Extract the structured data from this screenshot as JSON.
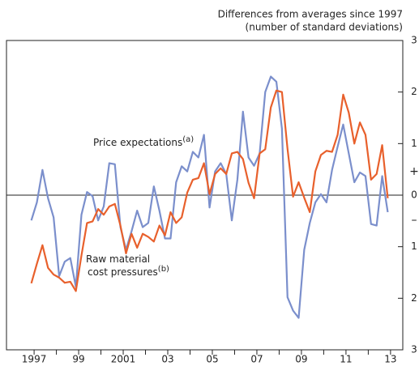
{
  "chart_data": {
    "type": "line",
    "subtitle_lines": [
      "Differences from averages since 1997",
      "(number of standard deviations)"
    ],
    "sign_labels": [
      "+",
      "–"
    ],
    "annotations": [
      {
        "lines": [
          "Price expectations"
        ],
        "note": "(a)"
      },
      {
        "lines": [
          "Raw material",
          "cost pressures"
        ],
        "note": "(b)"
      }
    ],
    "x": [
      1996.875,
      1997.125,
      1997.375,
      1997.625,
      1997.875,
      1998.125,
      1998.375,
      1998.625,
      1998.875,
      1999.125,
      1999.375,
      1999.625,
      1999.875,
      2000.125,
      2000.375,
      2000.625,
      2000.875,
      2001.125,
      2001.375,
      2001.625,
      2001.875,
      2002.125,
      2002.375,
      2002.625,
      2002.875,
      2003.125,
      2003.375,
      2003.625,
      2003.875,
      2004.125,
      2004.375,
      2004.625,
      2004.875,
      2005.125,
      2005.375,
      2005.625,
      2005.875,
      2006.125,
      2006.375,
      2006.625,
      2006.875,
      2007.125,
      2007.375,
      2007.625,
      2007.875,
      2008.125,
      2008.375,
      2008.625,
      2008.875,
      2009.125,
      2009.375,
      2009.625,
      2009.875,
      2010.125,
      2010.375,
      2010.625,
      2010.875,
      2011.125,
      2011.375,
      2011.625,
      2011.875,
      2012.125,
      2012.375,
      2012.625,
      2012.875
    ],
    "series": [
      {
        "name": "Price expectations",
        "color": "#7b8fcc",
        "values": [
          -0.49,
          -0.14,
          0.49,
          -0.06,
          -0.43,
          -1.57,
          -1.29,
          -1.22,
          -1.78,
          -0.38,
          0.06,
          -0.02,
          -0.49,
          -0.22,
          0.62,
          0.6,
          -0.62,
          -1.06,
          -0.7,
          -0.3,
          -0.62,
          -0.54,
          0.17,
          -0.3,
          -0.84,
          -0.84,
          0.25,
          0.56,
          0.46,
          0.84,
          0.73,
          1.17,
          -0.24,
          0.46,
          0.62,
          0.41,
          -0.49,
          0.3,
          1.62,
          0.73,
          0.57,
          0.81,
          2.0,
          2.3,
          2.2,
          1.29,
          -1.98,
          -2.24,
          -2.38,
          -1.06,
          -0.54,
          -0.14,
          0.02,
          -0.14,
          0.49,
          0.94,
          1.37,
          0.81,
          0.25,
          0.44,
          0.37,
          -0.56,
          -0.59,
          0.37,
          -0.33
        ]
      },
      {
        "name": "Raw material cost pressures",
        "color": "#e8602c",
        "values": [
          -1.71,
          -1.33,
          -0.97,
          -1.41,
          -1.54,
          -1.6,
          -1.7,
          -1.68,
          -1.86,
          -1.17,
          -0.54,
          -0.51,
          -0.27,
          -0.38,
          -0.22,
          -0.17,
          -0.59,
          -1.13,
          -0.75,
          -1.02,
          -0.75,
          -0.81,
          -0.9,
          -0.59,
          -0.78,
          -0.33,
          -0.54,
          -0.43,
          0.05,
          0.3,
          0.33,
          0.62,
          0.02,
          0.41,
          0.52,
          0.41,
          0.81,
          0.84,
          0.7,
          0.24,
          -0.06,
          0.81,
          0.89,
          1.7,
          2.03,
          2.0,
          0.9,
          -0.03,
          0.25,
          -0.05,
          -0.33,
          0.46,
          0.78,
          0.86,
          0.84,
          1.17,
          1.95,
          1.6,
          1.0,
          1.41,
          1.17,
          0.3,
          0.41,
          0.97,
          -0.06
        ]
      }
    ],
    "xlim": [
      1995.76,
      2013.55
    ],
    "xticks": [
      1997,
      {
        "value": 1999,
        "label": "99"
      },
      2001,
      {
        "value": 2003,
        "label": "03"
      },
      {
        "value": 2005,
        "label": "05"
      },
      {
        "value": 2007,
        "label": "07"
      },
      {
        "value": 2009,
        "label": "09"
      },
      {
        "value": 2011,
        "label": "11"
      },
      {
        "value": 2013,
        "label": "13"
      }
    ],
    "xminorticks": [
      1998,
      2000,
      2002,
      2004,
      2006,
      2008,
      2010,
      2012
    ],
    "ylim": [
      -3,
      3
    ],
    "yticks": [
      {
        "value": -3,
        "label": "3"
      },
      {
        "value": -2,
        "label": "2"
      },
      {
        "value": -1,
        "label": "1"
      },
      0,
      1,
      2,
      3
    ],
    "zero_line": true
  }
}
